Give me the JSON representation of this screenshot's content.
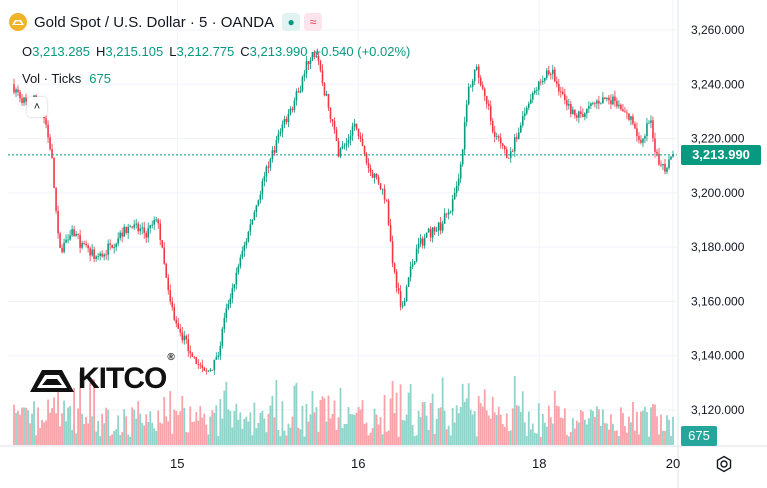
{
  "header": {
    "title": "Gold Spot / U.S. Dollar · 5 · OANDA",
    "buttons": [
      {
        "name": "indicator-dot-button",
        "glyph": "●",
        "bg": "#e0f2f1",
        "color": "#089981"
      },
      {
        "name": "compare-button",
        "glyph": "≈",
        "bg": "#fce4ec",
        "color": "#f23645"
      }
    ]
  },
  "ohlc": {
    "o_label": "O",
    "o": "3,213.285",
    "h_label": "H",
    "h": "3,215.105",
    "l_label": "L",
    "l": "3,212.775",
    "c_label": "C",
    "c": "3,213.990",
    "change": "+0.540 (+0.02%)"
  },
  "volume": {
    "label": "Vol · Ticks",
    "value": "675"
  },
  "collapse_glyph": "˄",
  "logo": {
    "text": "KITCO",
    "reg": "®"
  },
  "colors": {
    "up": "#089981",
    "down": "#f23645",
    "vol_up": "#8fd3ca",
    "vol_down": "#f7a3a8",
    "grid": "#f0f3fa",
    "text": "#131722"
  },
  "chart_data": {
    "type": "candlestick",
    "symbol": "Gold Spot / U.S. Dollar",
    "x_tick_labels": [
      "15",
      "16",
      "18",
      "20"
    ],
    "y_tick_labels": [
      "3,260.000",
      "3,240.000",
      "3,220.000",
      "3,200.000",
      "3,180.000",
      "3,160.000",
      "3,140.000",
      "3,120.000"
    ],
    "y_ticks": [
      3260,
      3240,
      3220,
      3200,
      3180,
      3160,
      3140,
      3120
    ],
    "ylim": [
      3107,
      3268
    ],
    "last_price": 3213.99,
    "last_price_label": "3,213.990",
    "volume_label": "675",
    "price_path": [
      {
        "t": 0,
        "p": 3240
      },
      {
        "t": 2,
        "p": 3236
      },
      {
        "t": 4,
        "p": 3232
      },
      {
        "t": 6,
        "p": 3235
      },
      {
        "t": 8,
        "p": 3228
      },
      {
        "t": 10,
        "p": 3215
      },
      {
        "t": 12,
        "p": 3178
      },
      {
        "t": 15,
        "p": 3187
      },
      {
        "t": 18,
        "p": 3180
      },
      {
        "t": 22,
        "p": 3176
      },
      {
        "t": 26,
        "p": 3182
      },
      {
        "t": 30,
        "p": 3188
      },
      {
        "t": 34,
        "p": 3185
      },
      {
        "t": 37,
        "p": 3190
      },
      {
        "t": 40,
        "p": 3160
      },
      {
        "t": 43,
        "p": 3148
      },
      {
        "t": 46,
        "p": 3140
      },
      {
        "t": 49,
        "p": 3133
      },
      {
        "t": 52,
        "p": 3138
      },
      {
        "t": 55,
        "p": 3160
      },
      {
        "t": 58,
        "p": 3175
      },
      {
        "t": 61,
        "p": 3190
      },
      {
        "t": 64,
        "p": 3205
      },
      {
        "t": 67,
        "p": 3218
      },
      {
        "t": 70,
        "p": 3228
      },
      {
        "t": 73,
        "p": 3238
      },
      {
        "t": 75,
        "p": 3248
      },
      {
        "t": 77,
        "p": 3252
      },
      {
        "t": 79,
        "p": 3240
      },
      {
        "t": 81,
        "p": 3228
      },
      {
        "t": 83,
        "p": 3215
      },
      {
        "t": 85,
        "p": 3218
      },
      {
        "t": 87,
        "p": 3226
      },
      {
        "t": 89,
        "p": 3216
      },
      {
        "t": 91,
        "p": 3208
      },
      {
        "t": 93,
        "p": 3205
      },
      {
        "t": 95,
        "p": 3198
      },
      {
        "t": 97,
        "p": 3172
      },
      {
        "t": 99,
        "p": 3157
      },
      {
        "t": 101,
        "p": 3170
      },
      {
        "t": 103,
        "p": 3180
      },
      {
        "t": 106,
        "p": 3185
      },
      {
        "t": 109,
        "p": 3188
      },
      {
        "t": 112,
        "p": 3196
      },
      {
        "t": 114,
        "p": 3210
      },
      {
        "t": 116,
        "p": 3238
      },
      {
        "t": 118,
        "p": 3246
      },
      {
        "t": 120,
        "p": 3238
      },
      {
        "t": 122,
        "p": 3225
      },
      {
        "t": 124,
        "p": 3218
      },
      {
        "t": 126,
        "p": 3212
      },
      {
        "t": 128,
        "p": 3220
      },
      {
        "t": 131,
        "p": 3232
      },
      {
        "t": 134,
        "p": 3240
      },
      {
        "t": 137,
        "p": 3245
      },
      {
        "t": 140,
        "p": 3236
      },
      {
        "t": 143,
        "p": 3228
      },
      {
        "t": 146,
        "p": 3230
      },
      {
        "t": 149,
        "p": 3234
      },
      {
        "t": 152,
        "p": 3235
      },
      {
        "t": 155,
        "p": 3230
      },
      {
        "t": 158,
        "p": 3226
      },
      {
        "t": 160,
        "p": 3216
      },
      {
        "t": 162,
        "p": 3228
      },
      {
        "t": 164,
        "p": 3212
      },
      {
        "t": 166,
        "p": 3209
      },
      {
        "t": 168,
        "p": 3213.99
      }
    ]
  }
}
